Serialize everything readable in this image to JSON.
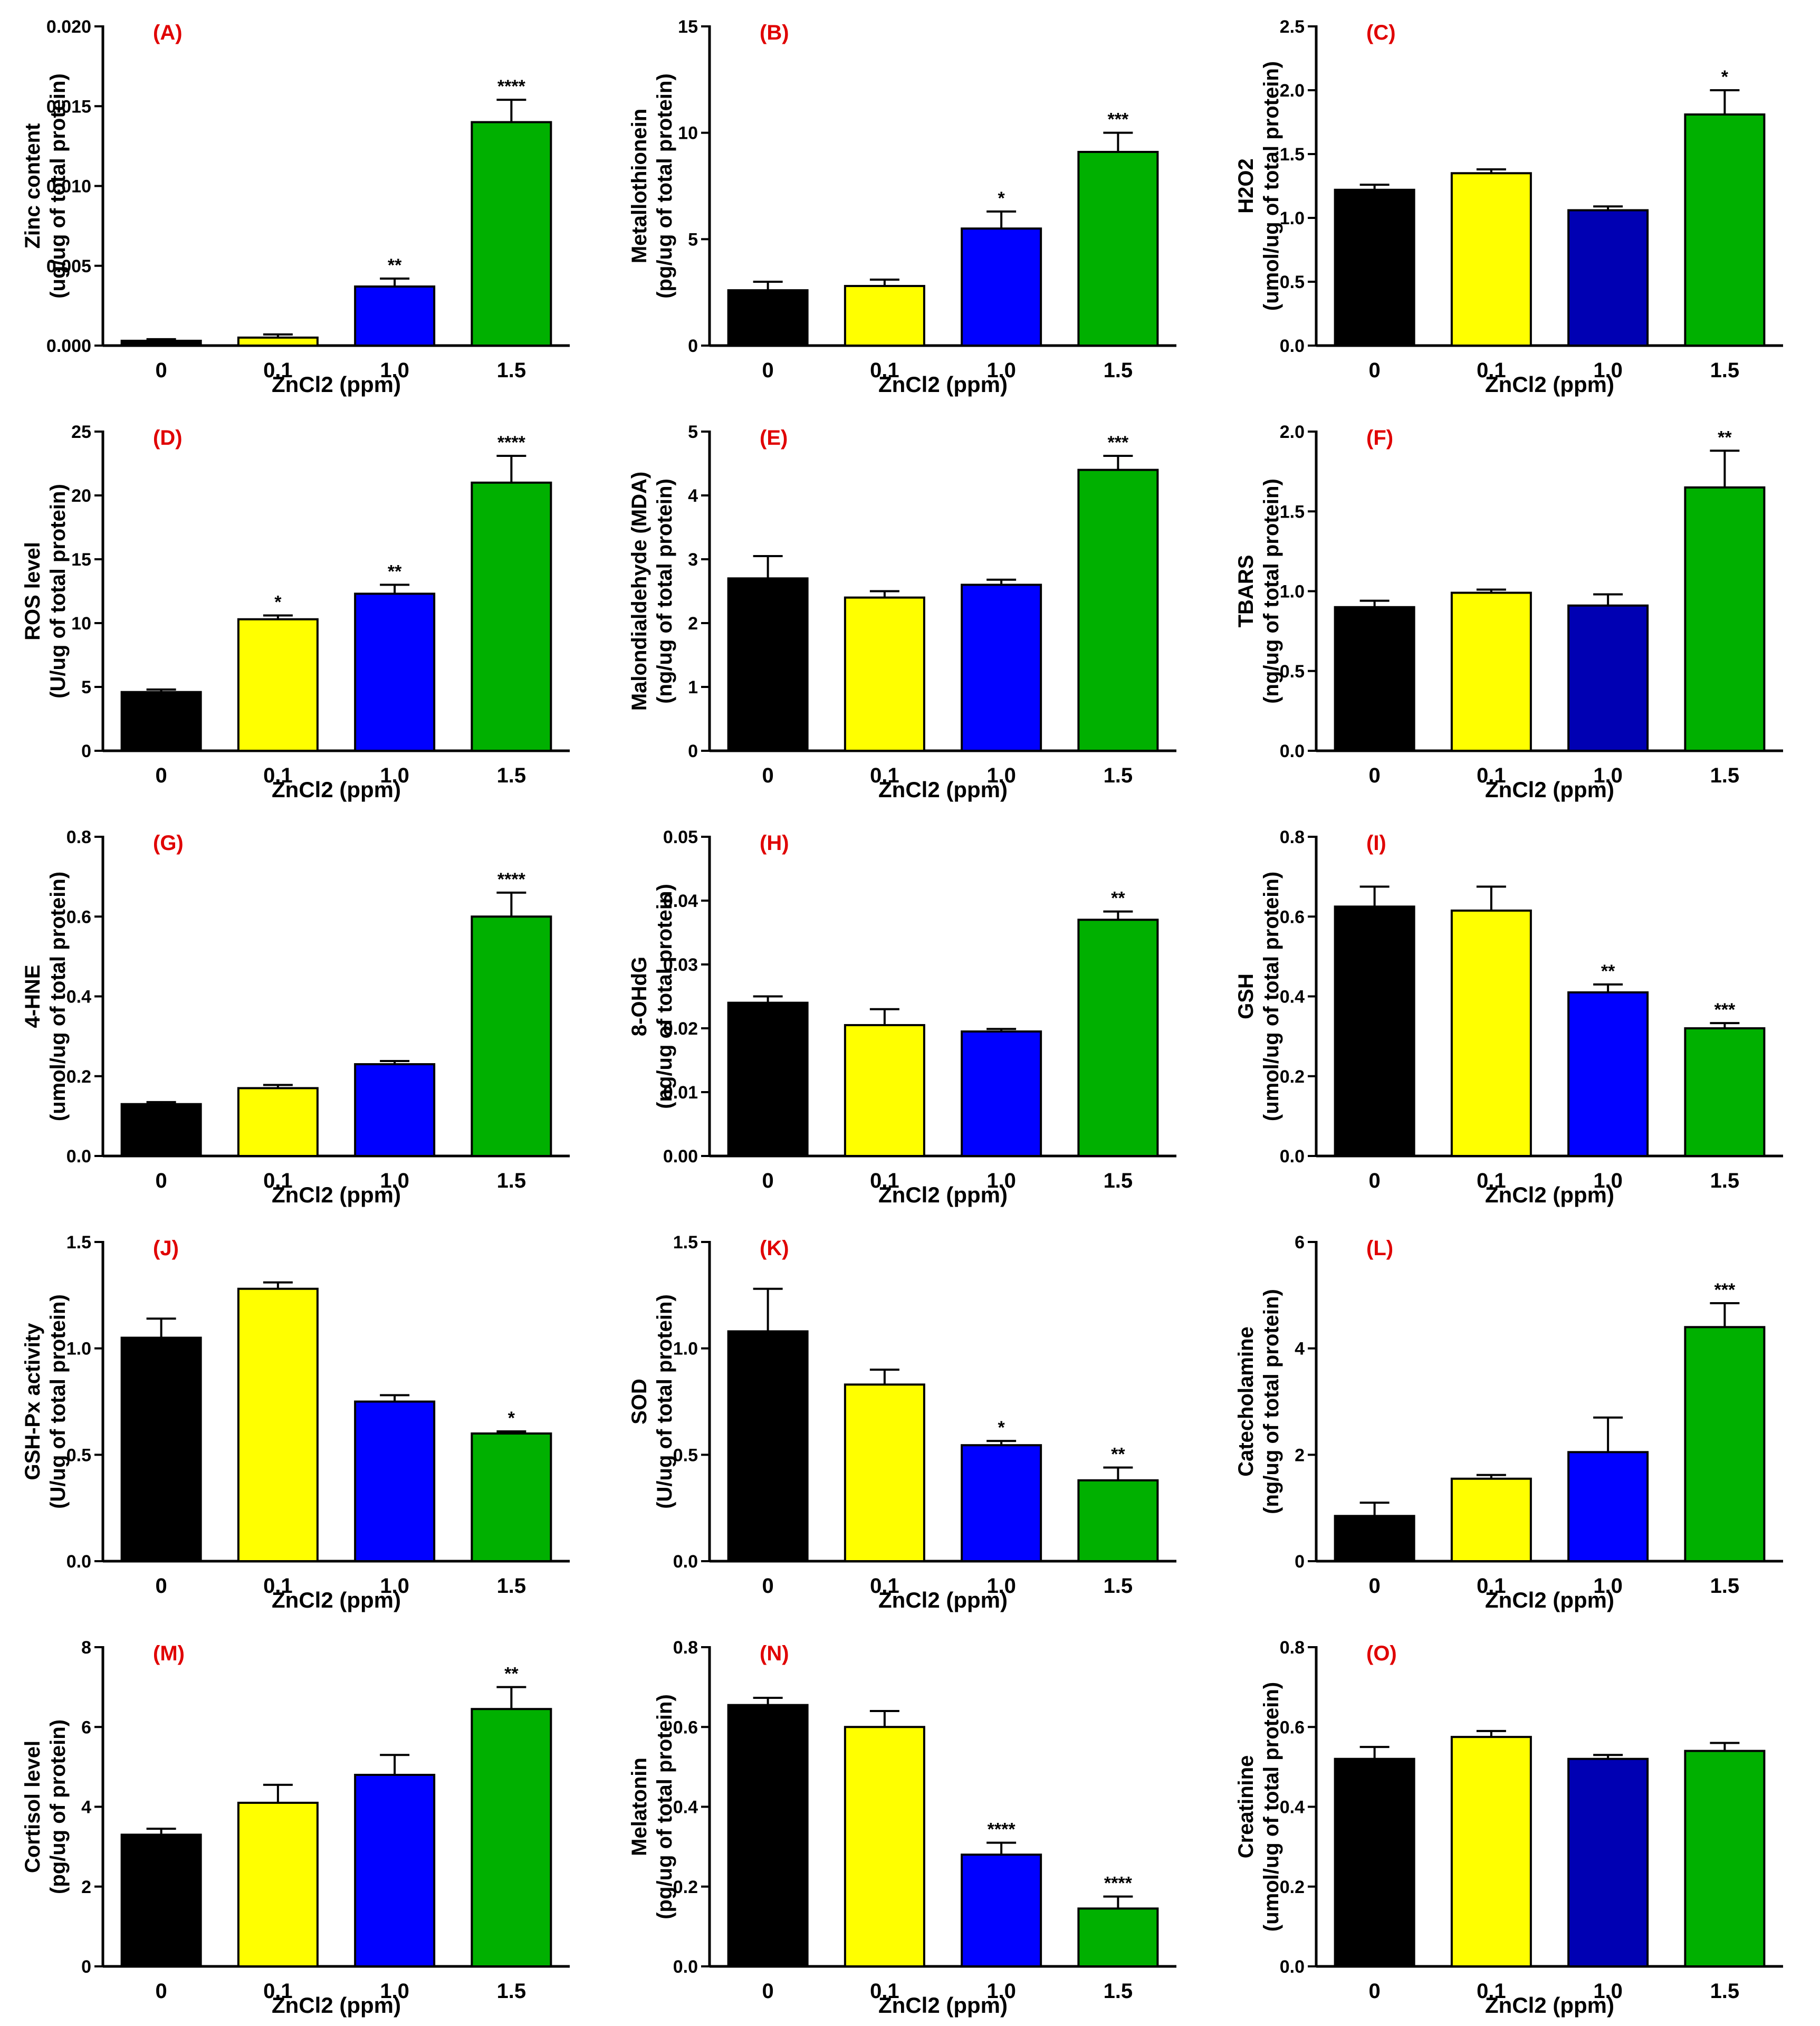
{
  "page": {
    "title": "ZnCl2 exposure: biochemical and stress markers (panels A–O)"
  },
  "colors": {
    "group_0": "#000000",
    "group_0.1": "#ffff00",
    "group_1.0": "#0000ff",
    "group_1.0_dark": "#0000b3",
    "group_1.5": "#00b000",
    "panel_letter": "#e00000",
    "axis": "#000000"
  },
  "chart_data": [
    {
      "id": "A",
      "type": "bar",
      "letter": "(A)",
      "xlabel": "ZnCl2 (ppm)",
      "ylabel": [
        "Zinc content",
        "(ug/ug of total protein)"
      ],
      "ylim": [
        0,
        0.02
      ],
      "yticks": [
        0,
        0.005,
        0.01,
        0.015,
        0.02
      ],
      "ytick_labels": [
        "0.000",
        "0.005",
        "0.010",
        "0.015",
        "0.020"
      ],
      "categories": [
        "0",
        "0.1",
        "1.0",
        "1.5"
      ],
      "values": [
        0.0003,
        0.0005,
        0.0037,
        0.014
      ],
      "errors": [
        0.0001,
        0.0002,
        0.0005,
        0.0014
      ],
      "significance": [
        "",
        "",
        "**",
        "****"
      ],
      "colors": [
        "#000000",
        "#ffff00",
        "#0000ff",
        "#00b000"
      ]
    },
    {
      "id": "B",
      "type": "bar",
      "letter": "(B)",
      "xlabel": "ZnCl2 (ppm)",
      "ylabel": [
        "Metallothionein",
        "(pg/ug of total protein)"
      ],
      "ylim": [
        0,
        15
      ],
      "yticks": [
        0,
        5,
        10,
        15
      ],
      "ytick_labels": [
        "0",
        "5",
        "10",
        "15"
      ],
      "categories": [
        "0",
        "0.1",
        "1.0",
        "1.5"
      ],
      "values": [
        2.6,
        2.8,
        5.5,
        9.1
      ],
      "errors": [
        0.4,
        0.3,
        0.8,
        0.9
      ],
      "significance": [
        "",
        "",
        "*",
        "***"
      ],
      "colors": [
        "#000000",
        "#ffff00",
        "#0000ff",
        "#00b000"
      ]
    },
    {
      "id": "C",
      "type": "bar",
      "letter": "(C)",
      "xlabel": "ZnCl2 (ppm)",
      "ylabel": [
        "H2O2",
        "(umol/ug of total protein)"
      ],
      "ylim": [
        0,
        2.5
      ],
      "yticks": [
        0,
        0.5,
        1.0,
        1.5,
        2.0,
        2.5
      ],
      "ytick_labels": [
        "0.0",
        "0.5",
        "1.0",
        "1.5",
        "2.0",
        "2.5"
      ],
      "categories": [
        "0",
        "0.1",
        "1.0",
        "1.5"
      ],
      "values": [
        1.22,
        1.35,
        1.06,
        1.81
      ],
      "errors": [
        0.04,
        0.03,
        0.03,
        0.19
      ],
      "significance": [
        "",
        "",
        "",
        "*"
      ],
      "colors": [
        "#000000",
        "#ffff00",
        "#0000b3",
        "#00b000"
      ]
    },
    {
      "id": "D",
      "type": "bar",
      "letter": "(D)",
      "xlabel": "ZnCl2 (ppm)",
      "ylabel": [
        "ROS level",
        "(U/ug of total protein)"
      ],
      "ylim": [
        0,
        25
      ],
      "yticks": [
        0,
        5,
        10,
        15,
        20,
        25
      ],
      "ytick_labels": [
        "0",
        "5",
        "10",
        "15",
        "20",
        "25"
      ],
      "categories": [
        "0",
        "0.1",
        "1.0",
        "1.5"
      ],
      "values": [
        4.6,
        10.3,
        12.3,
        21.0
      ],
      "errors": [
        0.2,
        0.3,
        0.7,
        2.1
      ],
      "significance": [
        "",
        "*",
        "**",
        "****"
      ],
      "colors": [
        "#000000",
        "#ffff00",
        "#0000ff",
        "#00b000"
      ]
    },
    {
      "id": "E",
      "type": "bar",
      "letter": "(E)",
      "xlabel": "ZnCl2 (ppm)",
      "ylabel": [
        "Malondialdehyde (MDA)",
        "(ng/ug of total protein)"
      ],
      "ylim": [
        0,
        5
      ],
      "yticks": [
        0,
        1,
        2,
        3,
        4,
        5
      ],
      "ytick_labels": [
        "0",
        "1",
        "2",
        "3",
        "4",
        "5"
      ],
      "categories": [
        "0",
        "0.1",
        "1.0",
        "1.5"
      ],
      "values": [
        2.7,
        2.4,
        2.6,
        4.4
      ],
      "errors": [
        0.35,
        0.1,
        0.08,
        0.22
      ],
      "significance": [
        "",
        "",
        "",
        "***"
      ],
      "colors": [
        "#000000",
        "#ffff00",
        "#0000ff",
        "#00b000"
      ]
    },
    {
      "id": "F",
      "type": "bar",
      "letter": "(F)",
      "xlabel": "ZnCl2 (ppm)",
      "ylabel": [
        "TBARS",
        "(ng/ug of total protein)"
      ],
      "ylim": [
        0,
        2.0
      ],
      "yticks": [
        0,
        0.5,
        1.0,
        1.5,
        2.0
      ],
      "ytick_labels": [
        "0.0",
        "0.5",
        "1.0",
        "1.5",
        "2.0"
      ],
      "categories": [
        "0",
        "0.1",
        "1.0",
        "1.5"
      ],
      "values": [
        0.9,
        0.99,
        0.91,
        1.65
      ],
      "errors": [
        0.04,
        0.02,
        0.07,
        0.23
      ],
      "significance": [
        "",
        "",
        "",
        "**"
      ],
      "colors": [
        "#000000",
        "#ffff00",
        "#0000b3",
        "#00b000"
      ]
    },
    {
      "id": "G",
      "type": "bar",
      "letter": "(G)",
      "xlabel": "ZnCl2 (ppm)",
      "ylabel": [
        "4-HNE",
        "(umol/ug of total protein)"
      ],
      "ylim": [
        0,
        0.8
      ],
      "yticks": [
        0,
        0.2,
        0.4,
        0.6,
        0.8
      ],
      "ytick_labels": [
        "0.0",
        "0.2",
        "0.4",
        "0.6",
        "0.8"
      ],
      "categories": [
        "0",
        "0.1",
        "1.0",
        "1.5"
      ],
      "values": [
        0.13,
        0.17,
        0.23,
        0.6
      ],
      "errors": [
        0.005,
        0.008,
        0.008,
        0.06
      ],
      "significance": [
        "",
        "",
        "",
        "****"
      ],
      "colors": [
        "#000000",
        "#ffff00",
        "#0000ff",
        "#00b000"
      ]
    },
    {
      "id": "H",
      "type": "bar",
      "letter": "(H)",
      "xlabel": "ZnCl2 (ppm)",
      "ylabel": [
        "8-OHdG",
        "(ng/ug of total protein)"
      ],
      "ylim": [
        0,
        0.05
      ],
      "yticks": [
        0,
        0.01,
        0.02,
        0.03,
        0.04,
        0.05
      ],
      "ytick_labels": [
        "0.00",
        "0.01",
        "0.02",
        "0.03",
        "0.04",
        "0.05"
      ],
      "categories": [
        "0",
        "0.1",
        "1.0",
        "1.5"
      ],
      "values": [
        0.024,
        0.0205,
        0.0195,
        0.037
      ],
      "errors": [
        0.001,
        0.0025,
        0.0004,
        0.0013
      ],
      "significance": [
        "",
        "",
        "",
        "**"
      ],
      "colors": [
        "#000000",
        "#ffff00",
        "#0000ff",
        "#00b000"
      ]
    },
    {
      "id": "I",
      "type": "bar",
      "letter": "(I)",
      "xlabel": "ZnCl2 (ppm)",
      "ylabel": [
        "GSH",
        "(umol/ug of total protein)"
      ],
      "ylim": [
        0,
        0.8
      ],
      "yticks": [
        0,
        0.2,
        0.4,
        0.6,
        0.8
      ],
      "ytick_labels": [
        "0.0",
        "0.2",
        "0.4",
        "0.6",
        "0.8"
      ],
      "categories": [
        "0",
        "0.1",
        "1.0",
        "1.5"
      ],
      "values": [
        0.625,
        0.615,
        0.41,
        0.32
      ],
      "errors": [
        0.05,
        0.06,
        0.02,
        0.013
      ],
      "significance": [
        "",
        "",
        "**",
        "***"
      ],
      "colors": [
        "#000000",
        "#ffff00",
        "#0000ff",
        "#00b000"
      ]
    },
    {
      "id": "J",
      "type": "bar",
      "letter": "(J)",
      "xlabel": "ZnCl2 (ppm)",
      "ylabel": [
        "GSH-Px activity",
        "(U/ug of total protein)"
      ],
      "ylim": [
        0,
        1.5
      ],
      "yticks": [
        0,
        0.5,
        1.0,
        1.5
      ],
      "ytick_labels": [
        "0.0",
        "0.5",
        "1.0",
        "1.5"
      ],
      "categories": [
        "0",
        "0.1",
        "1.0",
        "1.5"
      ],
      "values": [
        1.05,
        1.28,
        0.75,
        0.6
      ],
      "errors": [
        0.09,
        0.03,
        0.03,
        0.01
      ],
      "significance": [
        "",
        "",
        "",
        "*"
      ],
      "colors": [
        "#000000",
        "#ffff00",
        "#0000ff",
        "#00b000"
      ]
    },
    {
      "id": "K",
      "type": "bar",
      "letter": "(K)",
      "xlabel": "ZnCl2 (ppm)",
      "ylabel": [
        "SOD",
        "(U/ug of total protein)"
      ],
      "ylim": [
        0,
        1.5
      ],
      "yticks": [
        0,
        0.5,
        1.0,
        1.5
      ],
      "ytick_labels": [
        "0.0",
        "0.5",
        "1.0",
        "1.5"
      ],
      "categories": [
        "0",
        "0.1",
        "1.0",
        "1.5"
      ],
      "values": [
        1.08,
        0.83,
        0.545,
        0.38
      ],
      "errors": [
        0.2,
        0.07,
        0.02,
        0.06
      ],
      "significance": [
        "",
        "",
        "*",
        "**"
      ],
      "colors": [
        "#000000",
        "#ffff00",
        "#0000ff",
        "#00b000"
      ]
    },
    {
      "id": "L",
      "type": "bar",
      "letter": "(L)",
      "xlabel": "ZnCl2 (ppm)",
      "ylabel": [
        "Catecholamine",
        "(ng/ug of total protein)"
      ],
      "ylim": [
        0,
        6
      ],
      "yticks": [
        0,
        2,
        4,
        6
      ],
      "ytick_labels": [
        "0",
        "2",
        "4",
        "6"
      ],
      "categories": [
        "0",
        "0.1",
        "1.0",
        "1.5"
      ],
      "values": [
        0.85,
        1.55,
        2.05,
        4.4
      ],
      "errors": [
        0.25,
        0.07,
        0.65,
        0.45
      ],
      "significance": [
        "",
        "",
        "",
        "***"
      ],
      "colors": [
        "#000000",
        "#ffff00",
        "#0000ff",
        "#00b000"
      ]
    },
    {
      "id": "M",
      "type": "bar",
      "letter": "(M)",
      "xlabel": "ZnCl2 (ppm)",
      "ylabel": [
        "Cortisol level",
        "(pg/ug of protein)"
      ],
      "ylim": [
        0,
        8
      ],
      "yticks": [
        0,
        2,
        4,
        6,
        8
      ],
      "ytick_labels": [
        "0",
        "2",
        "4",
        "6",
        "8"
      ],
      "categories": [
        "0",
        "0.1",
        "1.0",
        "1.5"
      ],
      "values": [
        3.3,
        4.1,
        4.8,
        6.45
      ],
      "errors": [
        0.15,
        0.45,
        0.5,
        0.55
      ],
      "significance": [
        "",
        "",
        "",
        "**"
      ],
      "colors": [
        "#000000",
        "#ffff00",
        "#0000ff",
        "#00b000"
      ]
    },
    {
      "id": "N",
      "type": "bar",
      "letter": "(N)",
      "xlabel": "ZnCl2 (ppm)",
      "ylabel": [
        "Melatonin",
        "(pg/ug of total protein)"
      ],
      "ylim": [
        0,
        0.8
      ],
      "yticks": [
        0,
        0.2,
        0.4,
        0.6,
        0.8
      ],
      "ytick_labels": [
        "0.0",
        "0.2",
        "0.4",
        "0.6",
        "0.8"
      ],
      "categories": [
        "0",
        "0.1",
        "1.0",
        "1.5"
      ],
      "values": [
        0.655,
        0.6,
        0.28,
        0.145
      ],
      "errors": [
        0.018,
        0.04,
        0.03,
        0.03
      ],
      "significance": [
        "",
        "",
        "****",
        "****"
      ],
      "colors": [
        "#000000",
        "#ffff00",
        "#0000ff",
        "#00b000"
      ]
    },
    {
      "id": "O",
      "type": "bar",
      "letter": "(O)",
      "xlabel": "ZnCl2 (ppm)",
      "ylabel": [
        "Creatinine",
        "(umol/ug of total protein)"
      ],
      "ylim": [
        0,
        0.8
      ],
      "yticks": [
        0,
        0.2,
        0.4,
        0.6,
        0.8
      ],
      "ytick_labels": [
        "0.0",
        "0.2",
        "0.4",
        "0.6",
        "0.8"
      ],
      "categories": [
        "0",
        "0.1",
        "1.0",
        "1.5"
      ],
      "values": [
        0.52,
        0.575,
        0.52,
        0.54
      ],
      "errors": [
        0.03,
        0.015,
        0.01,
        0.02
      ],
      "significance": [
        "",
        "",
        "",
        ""
      ],
      "colors": [
        "#000000",
        "#ffff00",
        "#0000b3",
        "#00b000"
      ]
    }
  ]
}
